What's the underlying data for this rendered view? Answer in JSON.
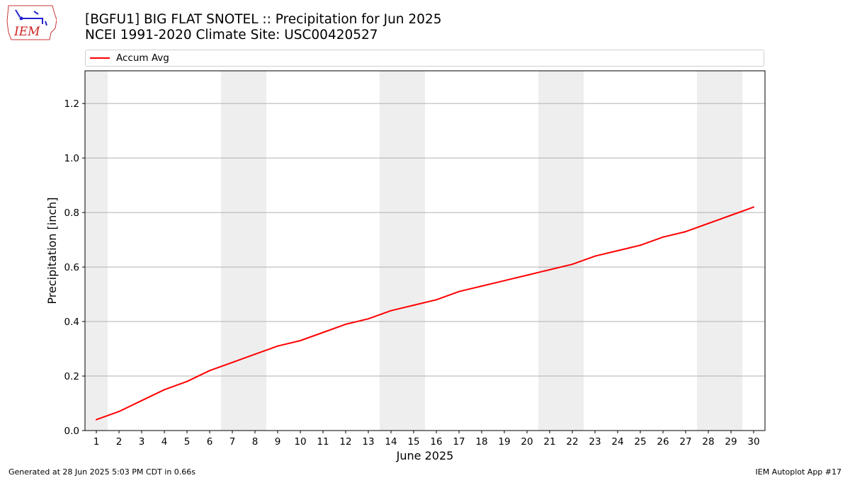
{
  "logo": {
    "text": "IEM"
  },
  "title": {
    "line1": "[BGFU1] BIG FLAT SNOTEL :: Precipitation for Jun 2025",
    "line2": "NCEI 1991-2020 Climate Site: USC00420527"
  },
  "footer": {
    "left": "Generated at 28 Jun 2025 5:03 PM CDT in 0.66s",
    "right": "IEM Autoplot App #17"
  },
  "colors": {
    "line": "#ff0000",
    "weekend_band": "#eeeeee",
    "grid": "#b0b0b0"
  },
  "chart_data": {
    "type": "line",
    "xlabel": "June 2025",
    "ylabel": "Precipitation [inch]",
    "xlim": [
      0.5,
      30.5
    ],
    "ylim": [
      0,
      1.32
    ],
    "x_ticks": [
      "1",
      "2",
      "3",
      "4",
      "5",
      "6",
      "7",
      "8",
      "9",
      "10",
      "11",
      "12",
      "13",
      "14",
      "15",
      "16",
      "17",
      "18",
      "19",
      "20",
      "21",
      "22",
      "23",
      "24",
      "25",
      "26",
      "27",
      "28",
      "29",
      "30"
    ],
    "y_ticks": [
      "0.0",
      "0.2",
      "0.4",
      "0.6",
      "0.8",
      "1.0",
      "1.2"
    ],
    "y_tick_values": [
      0,
      0.2,
      0.4,
      0.6,
      0.8,
      1.0,
      1.2
    ],
    "grid": "horizontal",
    "legend_position": "top",
    "weekend_bands": [
      [
        0.5,
        1.5
      ],
      [
        6.5,
        8.5
      ],
      [
        13.5,
        15.5
      ],
      [
        20.5,
        22.5
      ],
      [
        27.5,
        29.5
      ]
    ],
    "series": [
      {
        "name": "Accum Avg",
        "x": [
          1,
          2,
          3,
          4,
          5,
          6,
          7,
          8,
          9,
          10,
          11,
          12,
          13,
          14,
          15,
          16,
          17,
          18,
          19,
          20,
          21,
          22,
          23,
          24,
          25,
          26,
          27,
          28,
          29,
          30
        ],
        "values": [
          0.04,
          0.07,
          0.11,
          0.15,
          0.18,
          0.22,
          0.25,
          0.28,
          0.31,
          0.33,
          0.36,
          0.39,
          0.41,
          0.44,
          0.46,
          0.48,
          0.51,
          0.53,
          0.55,
          0.57,
          0.59,
          0.61,
          0.64,
          0.66,
          0.68,
          0.71,
          0.73,
          0.76,
          0.79,
          0.82
        ]
      }
    ]
  }
}
